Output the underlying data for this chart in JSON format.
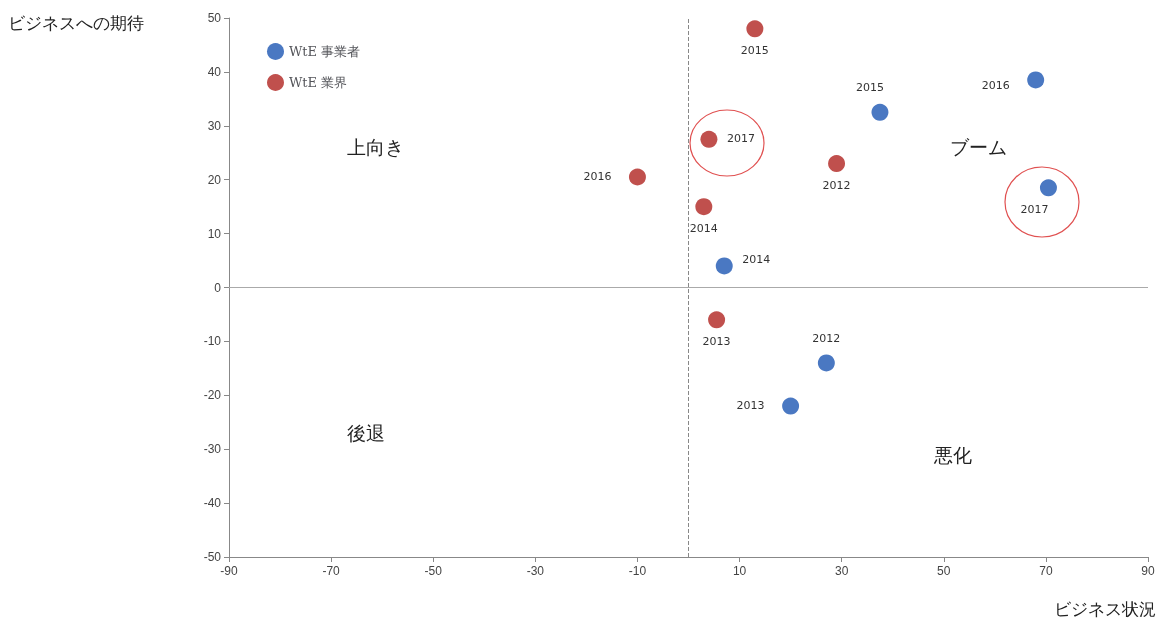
{
  "chart_data": {
    "type": "scatter",
    "xlabel": "ビジネス状況",
    "annotations": [
      "ビジネスへの期待",
      "上向き",
      "ブーム",
      "後退",
      "悪化",
      {
        "text": "2012",
        "x": 27,
        "y": -14
      },
      {
        "text": "2013",
        "x": 20,
        "y": -22
      },
      {
        "text": "2014",
        "x": 7,
        "y": 4
      },
      {
        "text": "2015",
        "x": 37.5,
        "y": 32.5
      },
      {
        "text": "2016",
        "x": 68,
        "y": 38.5
      },
      {
        "text": "2017",
        "x": 70.5,
        "y": 18.5
      },
      {
        "text": "2012",
        "x": 29,
        "y": 23
      },
      {
        "text": "2013",
        "x": 5.5,
        "y": -6
      },
      {
        "text": "2014",
        "x": 3,
        "y": 15
      },
      {
        "text": "2015",
        "x": 13,
        "y": 48
      },
      {
        "text": "2016",
        "x": -10,
        "y": 20.5
      },
      {
        "text": "2017",
        "x": 4,
        "y": 27.5
      }
    ],
    "series": [
      {
        "name": "WtE 事業者",
        "color": "#4a78c2",
        "x": [
          27,
          20,
          7,
          37.5,
          68,
          70.5
        ],
        "values": [
          -14,
          -22,
          4,
          32.5,
          38.5,
          18.5
        ]
      },
      {
        "name": "WtE 業界",
        "color": "#c0504d",
        "x": [
          29,
          5.5,
          3,
          13,
          -10,
          4
        ],
        "values": [
          23,
          -6,
          15,
          48,
          20.5,
          27.5
        ]
      }
    ],
    "xlim": [
      -90,
      90
    ],
    "xticks": [
      -90,
      -70,
      -50,
      -30,
      -10,
      10,
      30,
      50,
      70,
      90
    ],
    "ylim": [
      -50,
      50
    ],
    "yticks": [
      -50,
      -40,
      -30,
      -20,
      -10,
      0,
      10,
      20,
      30,
      40,
      50
    ],
    "ref_lines": [
      {
        "axis": "x",
        "value": 0,
        "line_style": "dashed",
        "color": "#888888"
      },
      {
        "axis": "y",
        "value": 0,
        "line_style": "solid",
        "color": "#aaaaaa"
      }
    ],
    "grid": false,
    "legend": "top left",
    "marker": "circle"
  }
}
